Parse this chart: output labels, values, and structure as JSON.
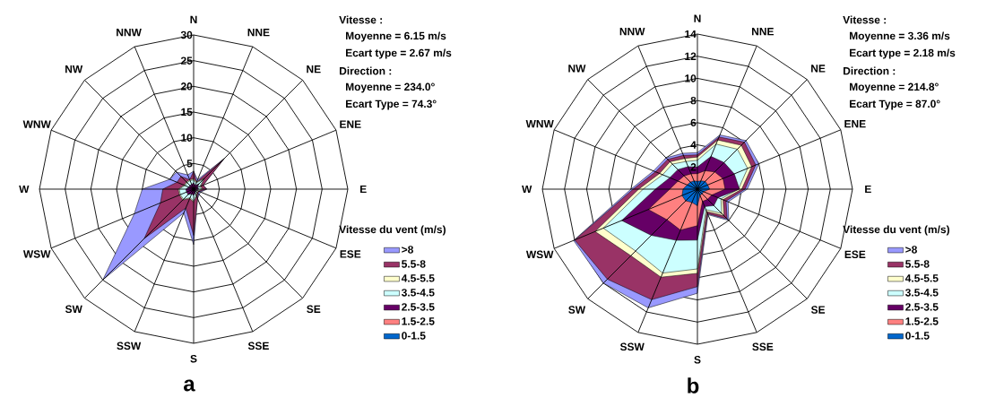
{
  "chart_data": [
    {
      "type": "radar",
      "title": "a",
      "legend_title": "Vitesse du vent (m/s)",
      "legend": "right",
      "grid": true,
      "annotations": [
        "Vitesse :",
        "Moyenne = 6.15 m/s",
        "Ecart type = 2.67 m/s",
        "Direction :",
        "Moyenne = 234.0°",
        "Ecart Type = 74.3°"
      ],
      "categories": [
        "N",
        "NNE",
        "NE",
        "ENE",
        "E",
        "ESE",
        "SE",
        "SSE",
        "S",
        "SSW",
        "SW",
        "WSW",
        "W",
        "WNW",
        "NW",
        "NNW"
      ],
      "ylim": [
        0,
        30
      ],
      "yticks": [
        5,
        10,
        15,
        20,
        25,
        30
      ],
      "series": [
        {
          "name": ">8",
          "color": "#9999ff",
          "values": [
            3.5,
            2,
            8.5,
            2,
            2.6,
            1.5,
            1.5,
            2,
            10.8,
            5,
            25,
            12.5,
            10,
            5,
            4.7,
            3
          ]
        },
        {
          "name": "5.5-8",
          "color": "#993366",
          "values": [
            3.5,
            1.5,
            8.4,
            2,
            2.5,
            1.2,
            1.2,
            2,
            9,
            4,
            13.6,
            7,
            6,
            3.5,
            3.5,
            2
          ]
        },
        {
          "name": "4.5-5.5",
          "color": "#ffffcc",
          "values": [
            2,
            1.5,
            3,
            1.5,
            1.8,
            1,
            1,
            1.5,
            2.5,
            2,
            3,
            3,
            3,
            2,
            2,
            2
          ]
        },
        {
          "name": "3.5-4.5",
          "color": "#ccffff",
          "values": [
            1.8,
            1.3,
            2.8,
            1.3,
            1.6,
            0.8,
            0.8,
            1.3,
            2.3,
            1.8,
            2.8,
            2.8,
            2.8,
            1.8,
            1.8,
            1.8
          ]
        },
        {
          "name": "2.5-3.5",
          "color": "#660066",
          "values": [
            1.2,
            0.8,
            1.5,
            0.8,
            1,
            0.5,
            0.5,
            0.8,
            1.2,
            1,
            1.5,
            1.5,
            1.5,
            1,
            1,
            1
          ]
        },
        {
          "name": "1.5-2.5",
          "color": "#ff8080",
          "values": [
            null,
            null,
            null,
            null,
            null,
            null,
            null,
            null,
            null,
            null,
            null,
            null,
            null,
            null,
            null,
            null
          ]
        },
        {
          "name": "0-1.5",
          "color": "#0066cc",
          "values": [
            null,
            null,
            null,
            null,
            null,
            null,
            null,
            null,
            null,
            null,
            null,
            null,
            null,
            null,
            null,
            null
          ]
        }
      ]
    },
    {
      "type": "radar",
      "title": "b",
      "legend_title": "Vitesse du vent (m/s)",
      "legend": "right",
      "grid": true,
      "annotations": [
        "Vitesse :",
        "Moyenne = 3.36 m/s",
        "Ecart type = 2.18 m/s",
        "Direction :",
        "Moyenne = 214.8°",
        "Ecart Type = 87.0°"
      ],
      "categories": [
        "N",
        "NNE",
        "NE",
        "ENE",
        "E",
        "ESE",
        "SE",
        "SSE",
        "S",
        "SSW",
        "SW",
        "WSW",
        "W",
        "WNW",
        "NW",
        "NNW"
      ],
      "ylim": [
        0,
        14
      ],
      "yticks": [
        2,
        4,
        6,
        8,
        10,
        12,
        14
      ],
      "series": [
        {
          "name": ">8",
          "color": "#9999ff",
          "values": [
            3.3,
            5.3,
            6.2,
            6.0,
            4.5,
            3.0,
            4.0,
            2.5,
            9.4,
            11.6,
            12.0,
            12.1,
            6.0,
            4.3,
            4.0,
            3.5
          ]
        },
        {
          "name": "5.5-8",
          "color": "#993366",
          "values": [
            3.1,
            5.1,
            6.0,
            5.7,
            4.3,
            2.8,
            3.8,
            2.4,
            8.8,
            10.8,
            11.5,
            12.0,
            5.8,
            4.1,
            3.8,
            3.3
          ]
        },
        {
          "name": "4.5-5.5",
          "color": "#ffffcc",
          "values": [
            2.9,
            4.8,
            5.6,
            5.3,
            4.0,
            2.5,
            3.4,
            2.2,
            7.6,
            8.6,
            8.5,
            10.0,
            5.3,
            3.7,
            3.5,
            3.0
          ]
        },
        {
          "name": "3.5-4.5",
          "color": "#ccffff",
          "values": [
            2.6,
            4.4,
            5.1,
            4.9,
            3.7,
            2.3,
            3.1,
            2.0,
            7.2,
            8.2,
            7.9,
            9.2,
            4.9,
            3.4,
            3.2,
            2.7
          ]
        },
        {
          "name": "2.5-3.5",
          "color": "#660066",
          "values": [
            2.0,
            3.2,
            3.4,
            3.6,
            3.8,
            2.0,
            2.1,
            1.7,
            4.6,
            5.0,
            5.9,
            7.4,
            3.8,
            2.7,
            2.5,
            2.2
          ]
        },
        {
          "name": "1.5-2.5",
          "color": "#ff8080",
          "values": [
            1.4,
            1.8,
            2.2,
            2.5,
            2.5,
            1.4,
            1.3,
            1.2,
            3.3,
            4.0,
            3.9,
            4.8,
            2.5,
            1.9,
            1.7,
            1.5
          ]
        },
        {
          "name": "0-1.5",
          "color": "#0066cc",
          "values": [
            0.7,
            0.8,
            1.0,
            1.0,
            1.1,
            0.6,
            0.6,
            0.6,
            1.5,
            1.3,
            1.5,
            1.5,
            1.3,
            1.0,
            0.9,
            0.8
          ]
        }
      ]
    }
  ]
}
